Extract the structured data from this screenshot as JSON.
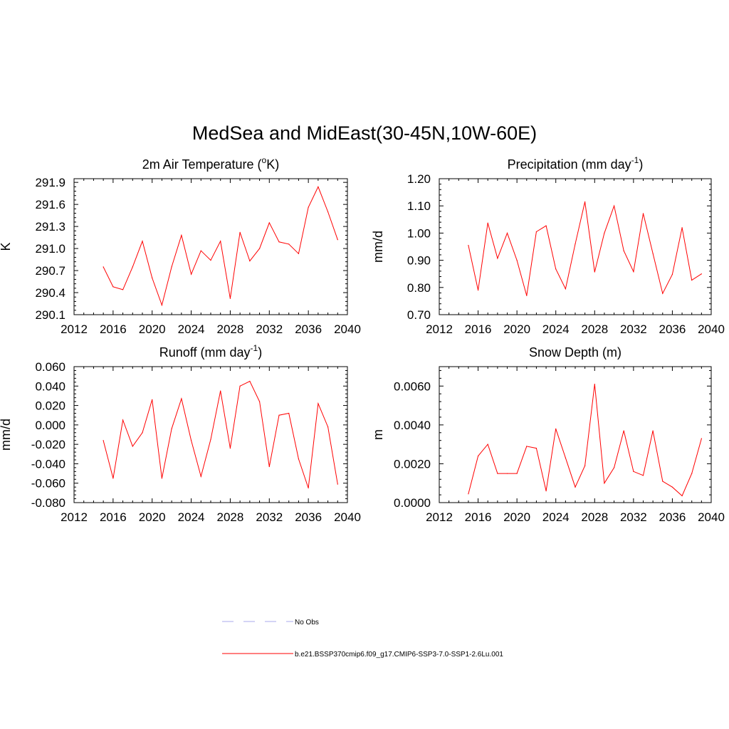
{
  "figure": {
    "title": "MedSea and MidEast(30-45N,10W-60E)"
  },
  "legend": {
    "items": [
      {
        "label": "No Obs",
        "color": "#aaaaee",
        "style": "dashed"
      },
      {
        "label": "b.e21.BSSP370cmip6.f09_g17.CMIP6-SSP3-7.0-SSP1-2.6Lu.001",
        "color": "#ff0000",
        "style": "solid"
      }
    ]
  },
  "chart_data": [
    {
      "type": "line",
      "title": "2m Air Temperature (",
      "title_sup": "o",
      "title_tail": "K)",
      "ylabel": "K",
      "xlim": [
        2012,
        2040
      ],
      "xticks": [
        "2012",
        "2016",
        "2020",
        "2024",
        "2028",
        "2032",
        "2036",
        "2040"
      ],
      "ylim": [
        290.1,
        291.95
      ],
      "yticks": [
        "290.1",
        "290.4",
        "290.7",
        "291.0",
        "291.3",
        "291.6",
        "291.9"
      ],
      "color": "#ff0000",
      "x": [
        2015,
        2016,
        2017,
        2018,
        2019,
        2020,
        2021,
        2022,
        2023,
        2024,
        2025,
        2026,
        2027,
        2028,
        2029,
        2030,
        2031,
        2032,
        2033,
        2034,
        2035,
        2036,
        2037,
        2038,
        2039
      ],
      "values": [
        290.75,
        290.48,
        290.44,
        290.75,
        291.1,
        290.6,
        290.23,
        290.75,
        291.18,
        290.65,
        290.97,
        290.84,
        291.1,
        290.32,
        291.22,
        290.83,
        291.0,
        291.35,
        291.09,
        291.06,
        290.93,
        291.56,
        291.84,
        291.5,
        291.12
      ]
    },
    {
      "type": "line",
      "title": "Precipitation (mm day",
      "title_sup": "-1",
      "title_tail": ")",
      "ylabel": "mm/d",
      "xlim": [
        2012,
        2040
      ],
      "xticks": [
        "2012",
        "2016",
        "2020",
        "2024",
        "2028",
        "2032",
        "2036",
        "2040"
      ],
      "ylim": [
        0.7,
        1.2
      ],
      "yticks": [
        "0.70",
        "0.80",
        "0.90",
        "1.00",
        "1.10",
        "1.20"
      ],
      "color": "#ff0000",
      "x": [
        2015,
        2016,
        2017,
        2018,
        2019,
        2020,
        2021,
        2022,
        2023,
        2024,
        2025,
        2026,
        2027,
        2028,
        2029,
        2030,
        2031,
        2032,
        2033,
        2034,
        2035,
        2036,
        2037,
        2038,
        2039
      ],
      "values": [
        0.955,
        0.79,
        1.037,
        0.907,
        1.0,
        0.9,
        0.77,
        1.005,
        1.027,
        0.868,
        0.795,
        0.96,
        1.115,
        0.857,
        1.0,
        1.1,
        0.935,
        0.858,
        1.072,
        0.925,
        0.778,
        0.848,
        1.02,
        0.827,
        0.85
      ]
    },
    {
      "type": "line",
      "title": "Runoff (mm day",
      "title_sup": "-1",
      "title_tail": ")",
      "ylabel": "mm/d",
      "xlim": [
        2012,
        2040
      ],
      "xticks": [
        "2012",
        "2016",
        "2020",
        "2024",
        "2028",
        "2032",
        "2036",
        "2040"
      ],
      "ylim": [
        -0.08,
        0.06
      ],
      "yticks": [
        "-0.080",
        "-0.060",
        "-0.040",
        "-0.020",
        "0.000",
        "0.020",
        "0.040",
        "0.060"
      ],
      "color": "#ff0000",
      "x": [
        2015,
        2016,
        2017,
        2018,
        2019,
        2020,
        2021,
        2022,
        2023,
        2024,
        2025,
        2026,
        2027,
        2028,
        2029,
        2030,
        2031,
        2032,
        2033,
        2034,
        2035,
        2036,
        2037,
        2038,
        2039
      ],
      "values": [
        -0.016,
        -0.055,
        0.005,
        -0.022,
        -0.008,
        0.026,
        -0.055,
        -0.004,
        0.027,
        -0.016,
        -0.053,
        -0.015,
        0.035,
        -0.024,
        0.04,
        0.045,
        0.024,
        -0.043,
        0.01,
        0.012,
        -0.035,
        -0.065,
        0.022,
        -0.002,
        -0.061
      ]
    },
    {
      "type": "line",
      "title": "Snow Depth (m)",
      "title_sup": "",
      "title_tail": "",
      "ylabel": "m",
      "xlim": [
        2012,
        2040
      ],
      "xticks": [
        "2012",
        "2016",
        "2020",
        "2024",
        "2028",
        "2032",
        "2036",
        "2040"
      ],
      "ylim": [
        0.0,
        0.007
      ],
      "yticks": [
        "0.0000",
        "0.0020",
        "0.0040",
        "0.0060"
      ],
      "color": "#ff0000",
      "x": [
        2015,
        2016,
        2017,
        2018,
        2019,
        2020,
        2021,
        2022,
        2023,
        2024,
        2025,
        2026,
        2027,
        2028,
        2029,
        2030,
        2031,
        2032,
        2033,
        2034,
        2035,
        2036,
        2037,
        2038,
        2039
      ],
      "values": [
        0.00045,
        0.0024,
        0.003,
        0.0015,
        0.0015,
        0.0015,
        0.0029,
        0.0028,
        0.0006,
        0.0038,
        0.0023,
        0.0008,
        0.0019,
        0.0061,
        0.001,
        0.0018,
        0.0037,
        0.0016,
        0.0014,
        0.0037,
        0.0011,
        0.0008,
        0.00035,
        0.0015,
        0.0033
      ]
    }
  ]
}
